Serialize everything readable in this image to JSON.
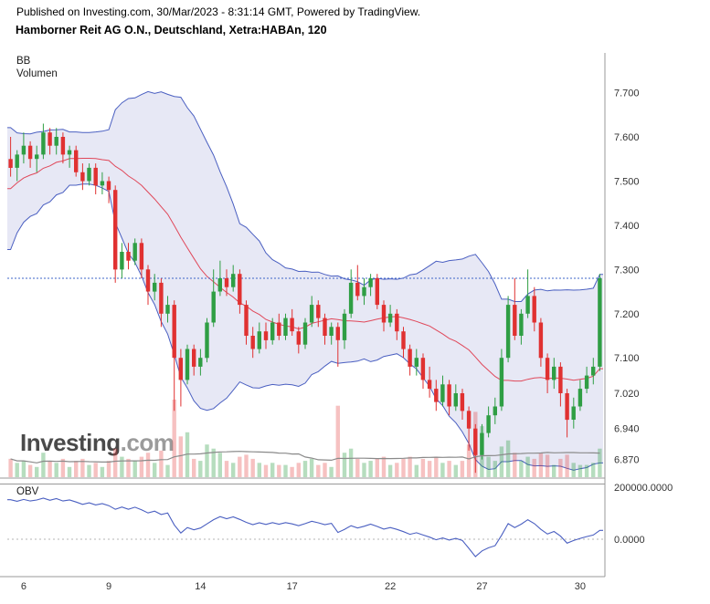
{
  "header": {
    "published_line": "Published on Investing.com, 30/Mar/2023 - 8:31:14 GMT, Powered by TradingView.",
    "title": "Hamborner Reit AG O.N., Deutschland, Xetra:HABAn, 120"
  },
  "main_pane": {
    "bb_label": "BB",
    "volume_label": "Volumen"
  },
  "obv_pane": {
    "label": "OBV",
    "y_ticks": [
      {
        "value": 200000,
        "label": "200000.0000"
      },
      {
        "value": 0,
        "label": "0.0000"
      }
    ]
  },
  "watermark": {
    "bold": "Investing",
    "light": ".com"
  },
  "colors": {
    "candle_up": "#2f9e44",
    "candle_down": "#e03131",
    "vol_up": "rgba(47,158,68,0.35)",
    "vol_down": "rgba(224,49,49,0.30)",
    "bb_line": "#4a5fc1",
    "bb_fill": "rgba(106,112,192,0.16)",
    "bb_mid": "#e0485a",
    "price_line": "#3e64c8",
    "obv_line": "#4a5fc1",
    "obv_zero": "#b5b5b5",
    "vol_ma": "#8a8a8a",
    "axis_line": "#999999",
    "axis_text": "#333333"
  },
  "chart_data": {
    "type": "candlestick",
    "title": "Hamborner Reit AG O.N., Deutschland, Xetra:HABAn, 120",
    "interval_minutes": 120,
    "indicators": [
      "BB",
      "Volumen",
      "OBV"
    ],
    "axis": {
      "price_min": 6.83,
      "price_max": 7.79
    },
    "y_ticks": [
      {
        "value": 7.7,
        "label": "7.700"
      },
      {
        "value": 7.6,
        "label": "7.600"
      },
      {
        "value": 7.5,
        "label": "7.500"
      },
      {
        "value": 7.4,
        "label": "7.400"
      },
      {
        "value": 7.3,
        "label": "7.300"
      },
      {
        "value": 7.2,
        "label": "7.200"
      },
      {
        "value": 7.1,
        "label": "7.100"
      },
      {
        "value": 7.02,
        "label": "7.020"
      },
      {
        "value": 6.94,
        "label": "6.940"
      },
      {
        "value": 6.87,
        "label": "6.870"
      }
    ],
    "x_ticks": [
      {
        "label": "6",
        "index": 2
      },
      {
        "label": "9",
        "index": 15
      },
      {
        "label": "14",
        "index": 29
      },
      {
        "label": "17",
        "index": 43
      },
      {
        "label": "22",
        "index": 58
      },
      {
        "label": "27",
        "index": 72
      },
      {
        "label": "30",
        "index": 87
      }
    ],
    "price_line": 7.28,
    "bollinger": {
      "period": 20,
      "stddev": 2,
      "pre_closes": [
        7.3,
        7.36,
        7.42,
        7.46,
        7.4,
        7.47,
        7.44,
        7.5,
        7.46,
        7.52,
        7.49,
        7.53,
        7.5,
        7.55,
        7.52,
        7.56,
        7.53,
        7.57,
        7.55
      ]
    },
    "candle_format": [
      "open",
      "high",
      "low",
      "close",
      "volume"
    ],
    "candles": [
      [
        7.55,
        7.6,
        7.51,
        7.53,
        9000
      ],
      [
        7.53,
        7.57,
        7.5,
        7.56,
        7000
      ],
      [
        7.56,
        7.61,
        7.54,
        7.58,
        8000
      ],
      [
        7.58,
        7.59,
        7.53,
        7.55,
        6000
      ],
      [
        7.55,
        7.58,
        7.52,
        7.56,
        5000
      ],
      [
        7.56,
        7.63,
        7.55,
        7.61,
        12000
      ],
      [
        7.61,
        7.62,
        7.56,
        7.58,
        8000
      ],
      [
        7.58,
        7.62,
        7.56,
        7.6,
        7000
      ],
      [
        7.6,
        7.61,
        7.54,
        7.56,
        9000
      ],
      [
        7.56,
        7.58,
        7.53,
        7.57,
        5000
      ],
      [
        7.57,
        7.58,
        7.51,
        7.52,
        8000
      ],
      [
        7.52,
        7.54,
        7.48,
        7.5,
        9000
      ],
      [
        7.5,
        7.54,
        7.49,
        7.53,
        6000
      ],
      [
        7.53,
        7.54,
        7.47,
        7.49,
        7000
      ],
      [
        7.49,
        7.52,
        7.47,
        7.5,
        5000
      ],
      [
        7.5,
        7.51,
        7.45,
        7.48,
        8000
      ],
      [
        7.48,
        7.49,
        7.27,
        7.3,
        14000
      ],
      [
        7.3,
        7.36,
        7.28,
        7.34,
        10000
      ],
      [
        7.34,
        7.36,
        7.3,
        7.32,
        9000
      ],
      [
        7.32,
        7.37,
        7.31,
        7.36,
        8000
      ],
      [
        7.36,
        7.37,
        7.28,
        7.3,
        10000
      ],
      [
        7.3,
        7.31,
        7.22,
        7.25,
        12000
      ],
      [
        7.25,
        7.29,
        7.23,
        7.27,
        7000
      ],
      [
        7.27,
        7.28,
        7.17,
        7.2,
        13000
      ],
      [
        7.2,
        7.24,
        7.18,
        7.22,
        6000
      ],
      [
        7.22,
        7.23,
        6.98,
        7.1,
        38000
      ],
      [
        7.1,
        7.12,
        6.99,
        7.05,
        20000
      ],
      [
        7.05,
        7.13,
        7.04,
        7.12,
        22000
      ],
      [
        7.12,
        7.13,
        7.06,
        7.08,
        9000
      ],
      [
        7.08,
        7.12,
        7.06,
        7.1,
        8000
      ],
      [
        7.1,
        7.19,
        7.09,
        7.18,
        16000
      ],
      [
        7.18,
        7.3,
        7.17,
        7.25,
        14000
      ],
      [
        7.25,
        7.32,
        7.24,
        7.28,
        12000
      ],
      [
        7.28,
        7.3,
        7.24,
        7.26,
        8000
      ],
      [
        7.26,
        7.31,
        7.25,
        7.29,
        7000
      ],
      [
        7.29,
        7.3,
        7.2,
        7.22,
        10000
      ],
      [
        7.22,
        7.23,
        7.13,
        7.15,
        11000
      ],
      [
        7.15,
        7.17,
        7.1,
        7.12,
        9000
      ],
      [
        7.12,
        7.18,
        7.11,
        7.16,
        7000
      ],
      [
        7.16,
        7.18,
        7.12,
        7.14,
        6000
      ],
      [
        7.14,
        7.19,
        7.13,
        7.18,
        7000
      ],
      [
        7.18,
        7.2,
        7.14,
        7.15,
        6000
      ],
      [
        7.15,
        7.2,
        7.14,
        7.19,
        6000
      ],
      [
        7.19,
        7.21,
        7.15,
        7.16,
        5000
      ],
      [
        7.16,
        7.17,
        7.11,
        7.13,
        7000
      ],
      [
        7.13,
        7.19,
        7.12,
        7.18,
        8000
      ],
      [
        7.18,
        7.24,
        7.17,
        7.22,
        9000
      ],
      [
        7.22,
        7.23,
        7.17,
        7.19,
        6000
      ],
      [
        7.19,
        7.2,
        7.13,
        7.15,
        7000
      ],
      [
        7.15,
        7.18,
        7.13,
        7.17,
        5000
      ],
      [
        7.17,
        7.18,
        7.08,
        7.14,
        35000
      ],
      [
        7.14,
        7.21,
        7.12,
        7.2,
        12000
      ],
      [
        7.2,
        7.3,
        7.19,
        7.27,
        14000
      ],
      [
        7.27,
        7.31,
        7.23,
        7.24,
        9000
      ],
      [
        7.24,
        7.28,
        7.22,
        7.26,
        7000
      ],
      [
        7.26,
        7.29,
        7.24,
        7.28,
        8000
      ],
      [
        7.28,
        7.29,
        7.21,
        7.22,
        9000
      ],
      [
        7.22,
        7.23,
        7.16,
        7.18,
        10000
      ],
      [
        7.18,
        7.22,
        7.17,
        7.2,
        6000
      ],
      [
        7.2,
        7.21,
        7.14,
        7.16,
        7000
      ],
      [
        7.16,
        7.17,
        7.1,
        7.12,
        9000
      ],
      [
        7.12,
        7.13,
        7.06,
        7.08,
        10000
      ],
      [
        7.08,
        7.12,
        7.06,
        7.1,
        6000
      ],
      [
        7.1,
        7.11,
        7.03,
        7.05,
        9000
      ],
      [
        7.05,
        7.08,
        7.01,
        7.03,
        8000
      ],
      [
        7.03,
        7.05,
        6.98,
        7.0,
        10000
      ],
      [
        7.0,
        7.06,
        6.99,
        7.04,
        7000
      ],
      [
        7.04,
        7.05,
        6.97,
        6.99,
        8000
      ],
      [
        6.99,
        7.04,
        6.98,
        7.02,
        6000
      ],
      [
        7.02,
        7.03,
        6.96,
        6.98,
        8000
      ],
      [
        6.98,
        6.99,
        6.89,
        6.94,
        16000
      ],
      [
        6.94,
        6.95,
        6.84,
        6.88,
        32000
      ],
      [
        6.88,
        6.95,
        6.87,
        6.93,
        25000
      ],
      [
        6.93,
        6.99,
        6.92,
        6.97,
        10000
      ],
      [
        6.97,
        7.01,
        6.95,
        6.99,
        8000
      ],
      [
        6.99,
        7.12,
        6.98,
        7.1,
        15000
      ],
      [
        7.1,
        7.24,
        7.09,
        7.22,
        18000
      ],
      [
        7.22,
        7.28,
        7.14,
        7.15,
        12000
      ],
      [
        7.15,
        7.21,
        7.13,
        7.2,
        8000
      ],
      [
        7.2,
        7.3,
        7.19,
        7.24,
        10000
      ],
      [
        7.24,
        7.26,
        7.16,
        7.18,
        9000
      ],
      [
        7.18,
        7.19,
        7.08,
        7.1,
        12000
      ],
      [
        7.1,
        7.11,
        7.02,
        7.05,
        11000
      ],
      [
        7.05,
        7.1,
        7.03,
        7.08,
        6000
      ],
      [
        7.08,
        7.09,
        6.99,
        7.02,
        9000
      ],
      [
        7.02,
        7.03,
        6.92,
        6.96,
        11000
      ],
      [
        6.96,
        7.01,
        6.94,
        6.99,
        7000
      ],
      [
        6.99,
        7.05,
        6.98,
        7.03,
        6000
      ],
      [
        7.03,
        7.08,
        7.02,
        7.06,
        6000
      ],
      [
        7.06,
        7.1,
        7.04,
        7.08,
        7000
      ],
      [
        7.08,
        7.29,
        7.07,
        7.28,
        14000
      ]
    ],
    "obv": [
      152000,
      146000,
      153000,
      147000,
      151000,
      158000,
      150000,
      156000,
      147000,
      151000,
      143000,
      134000,
      140000,
      132000,
      137000,
      129000,
      115000,
      124000,
      115000,
      123000,
      113000,
      101000,
      108000,
      95000,
      101000,
      55000,
      24000,
      45000,
      36000,
      43000,
      59000,
      75000,
      87000,
      79000,
      86000,
      76000,
      65000,
      56000,
      63000,
      57000,
      64000,
      58000,
      64000,
      59000,
      52000,
      60000,
      69000,
      63000,
      56000,
      61000,
      26000,
      38000,
      52000,
      43000,
      50000,
      58000,
      49000,
      39000,
      45000,
      38000,
      29000,
      19000,
      25000,
      16000,
      8000,
      -2000,
      5000,
      -3000,
      3000,
      -5000,
      -35000,
      -67000,
      -45000,
      -33000,
      -25000,
      15000,
      60000,
      45000,
      58000,
      75000,
      60000,
      38000,
      20000,
      30000,
      12000,
      -15000,
      -5000,
      3000,
      10000,
      16000,
      34000
    ]
  }
}
